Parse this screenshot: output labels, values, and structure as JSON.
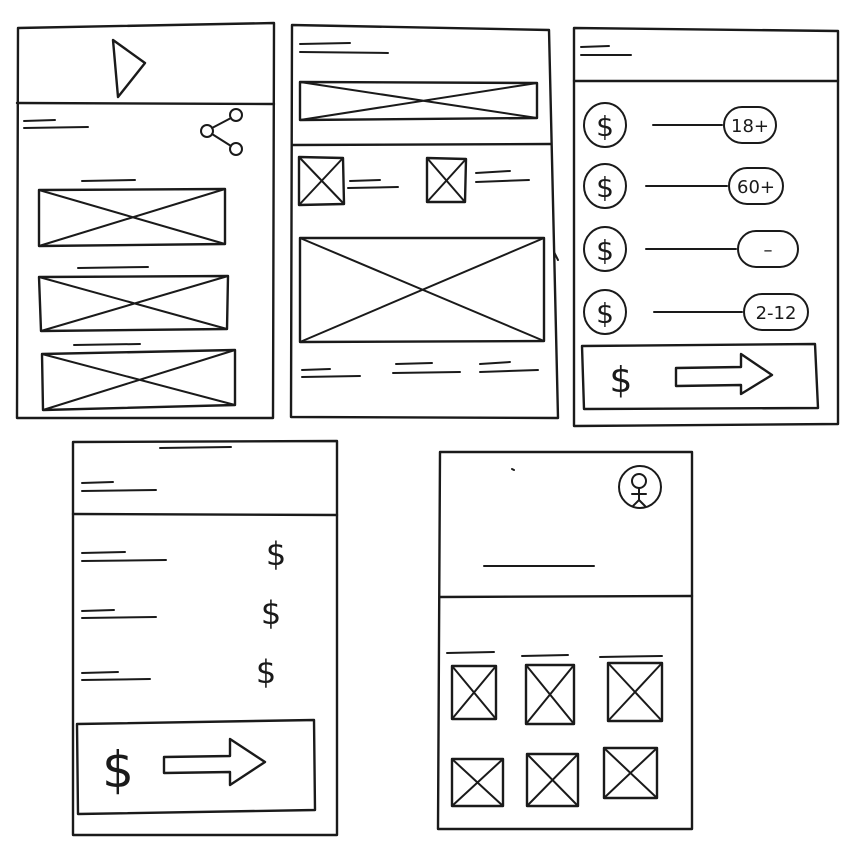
{
  "screens": [
    {
      "id": "screen-1",
      "icons": [
        "play-icon",
        "share-icon"
      ]
    },
    {
      "id": "screen-2"
    },
    {
      "id": "screen-3",
      "tickets": [
        {
          "symbol": "$",
          "badge": "18+"
        },
        {
          "symbol": "$",
          "badge": "60+"
        },
        {
          "symbol": "$",
          "badge": "–"
        },
        {
          "symbol": "$",
          "badge": "2-12"
        }
      ],
      "checkout": {
        "symbol": "$",
        "icon": "arrow-right-icon"
      }
    },
    {
      "id": "screen-4",
      "prices": [
        "$",
        "$",
        "$"
      ],
      "checkout": {
        "symbol": "$",
        "icon": "arrow-right-icon"
      }
    },
    {
      "id": "screen-5",
      "icons": [
        "user-avatar-icon"
      ]
    }
  ],
  "colors": {
    "ink": "#1a1a1a",
    "paper": "#ffffff"
  }
}
